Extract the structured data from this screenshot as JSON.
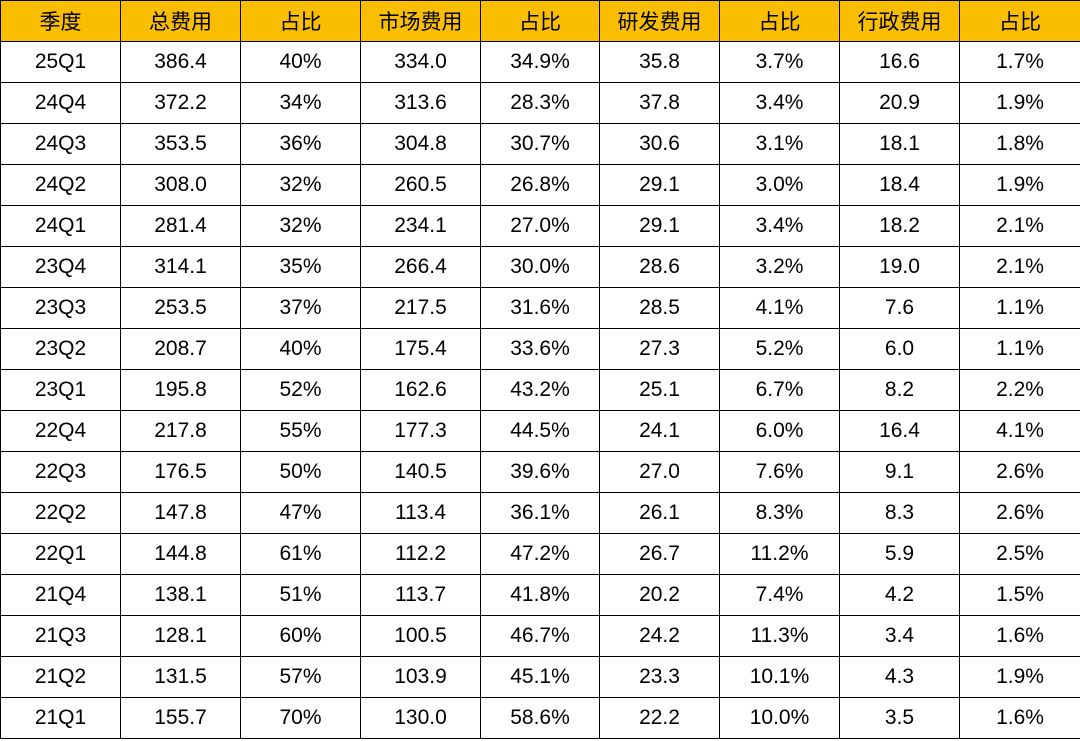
{
  "table": {
    "headers": [
      "季度",
      "总费用",
      "占比",
      "市场费用",
      "占比",
      "研发费用",
      "占比",
      "行政费用",
      "占比"
    ],
    "rows": [
      [
        "25Q1",
        "386.4",
        "40%",
        "334.0",
        "34.9%",
        "35.8",
        "3.7%",
        "16.6",
        "1.7%"
      ],
      [
        "24Q4",
        "372.2",
        "34%",
        "313.6",
        "28.3%",
        "37.8",
        "3.4%",
        "20.9",
        "1.9%"
      ],
      [
        "24Q3",
        "353.5",
        "36%",
        "304.8",
        "30.7%",
        "30.6",
        "3.1%",
        "18.1",
        "1.8%"
      ],
      [
        "24Q2",
        "308.0",
        "32%",
        "260.5",
        "26.8%",
        "29.1",
        "3.0%",
        "18.4",
        "1.9%"
      ],
      [
        "24Q1",
        "281.4",
        "32%",
        "234.1",
        "27.0%",
        "29.1",
        "3.4%",
        "18.2",
        "2.1%"
      ],
      [
        "23Q4",
        "314.1",
        "35%",
        "266.4",
        "30.0%",
        "28.6",
        "3.2%",
        "19.0",
        "2.1%"
      ],
      [
        "23Q3",
        "253.5",
        "37%",
        "217.5",
        "31.6%",
        "28.5",
        "4.1%",
        "7.6",
        "1.1%"
      ],
      [
        "23Q2",
        "208.7",
        "40%",
        "175.4",
        "33.6%",
        "27.3",
        "5.2%",
        "6.0",
        "1.1%"
      ],
      [
        "23Q1",
        "195.8",
        "52%",
        "162.6",
        "43.2%",
        "25.1",
        "6.7%",
        "8.2",
        "2.2%"
      ],
      [
        "22Q4",
        "217.8",
        "55%",
        "177.3",
        "44.5%",
        "24.1",
        "6.0%",
        "16.4",
        "4.1%"
      ],
      [
        "22Q3",
        "176.5",
        "50%",
        "140.5",
        "39.6%",
        "27.0",
        "7.6%",
        "9.1",
        "2.6%"
      ],
      [
        "22Q2",
        "147.8",
        "47%",
        "113.4",
        "36.1%",
        "26.1",
        "8.3%",
        "8.3",
        "2.6%"
      ],
      [
        "22Q1",
        "144.8",
        "61%",
        "112.2",
        "47.2%",
        "26.7",
        "11.2%",
        "5.9",
        "2.5%"
      ],
      [
        "21Q4",
        "138.1",
        "51%",
        "113.7",
        "41.8%",
        "20.2",
        "7.4%",
        "4.2",
        "1.5%"
      ],
      [
        "21Q3",
        "128.1",
        "60%",
        "100.5",
        "46.7%",
        "24.2",
        "11.3%",
        "3.4",
        "1.6%"
      ],
      [
        "21Q2",
        "131.5",
        "57%",
        "103.9",
        "45.1%",
        "23.3",
        "10.1%",
        "4.3",
        "1.9%"
      ],
      [
        "21Q1",
        "155.7",
        "70%",
        "130.0",
        "58.6%",
        "22.2",
        "10.0%",
        "3.5",
        "1.6%"
      ]
    ]
  },
  "colors": {
    "header_bg": "#F9BE00",
    "border": "#000000",
    "text": "#000000"
  }
}
